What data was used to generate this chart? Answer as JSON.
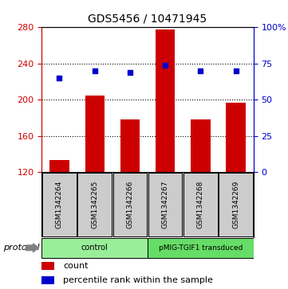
{
  "title": "GDS5456 / 10471945",
  "samples": [
    "GSM1342264",
    "GSM1342265",
    "GSM1342266",
    "GSM1342267",
    "GSM1342268",
    "GSM1342269"
  ],
  "counts": [
    133,
    205,
    178,
    278,
    178,
    197
  ],
  "percentile_ranks": [
    65,
    70,
    69,
    74,
    70,
    70
  ],
  "ylim_left": [
    120,
    280
  ],
  "ylim_right": [
    0,
    100
  ],
  "yticks_left": [
    120,
    160,
    200,
    240,
    280
  ],
  "yticks_right": [
    0,
    25,
    50,
    75,
    100
  ],
  "ytick_labels_right": [
    "0",
    "25",
    "50",
    "75",
    "100%"
  ],
  "bar_color": "#cc0000",
  "dot_color": "#0000cc",
  "bar_width": 0.55,
  "protocol_groups": [
    {
      "label": "control",
      "indices": [
        0,
        1,
        2
      ],
      "color": "#99ee99"
    },
    {
      "label": "pMIG-TGIF1 transduced",
      "indices": [
        3,
        4,
        5
      ],
      "color": "#66dd66"
    }
  ],
  "protocol_label": "protocol",
  "legend_count_label": "count",
  "legend_percentile_label": "percentile rank within the sample",
  "background_color": "#ffffff",
  "sample_box_color": "#cccccc",
  "sample_bg_color": "#bbbbbb",
  "left_tick_color": "#cc0000",
  "right_tick_color": "#0000cc"
}
